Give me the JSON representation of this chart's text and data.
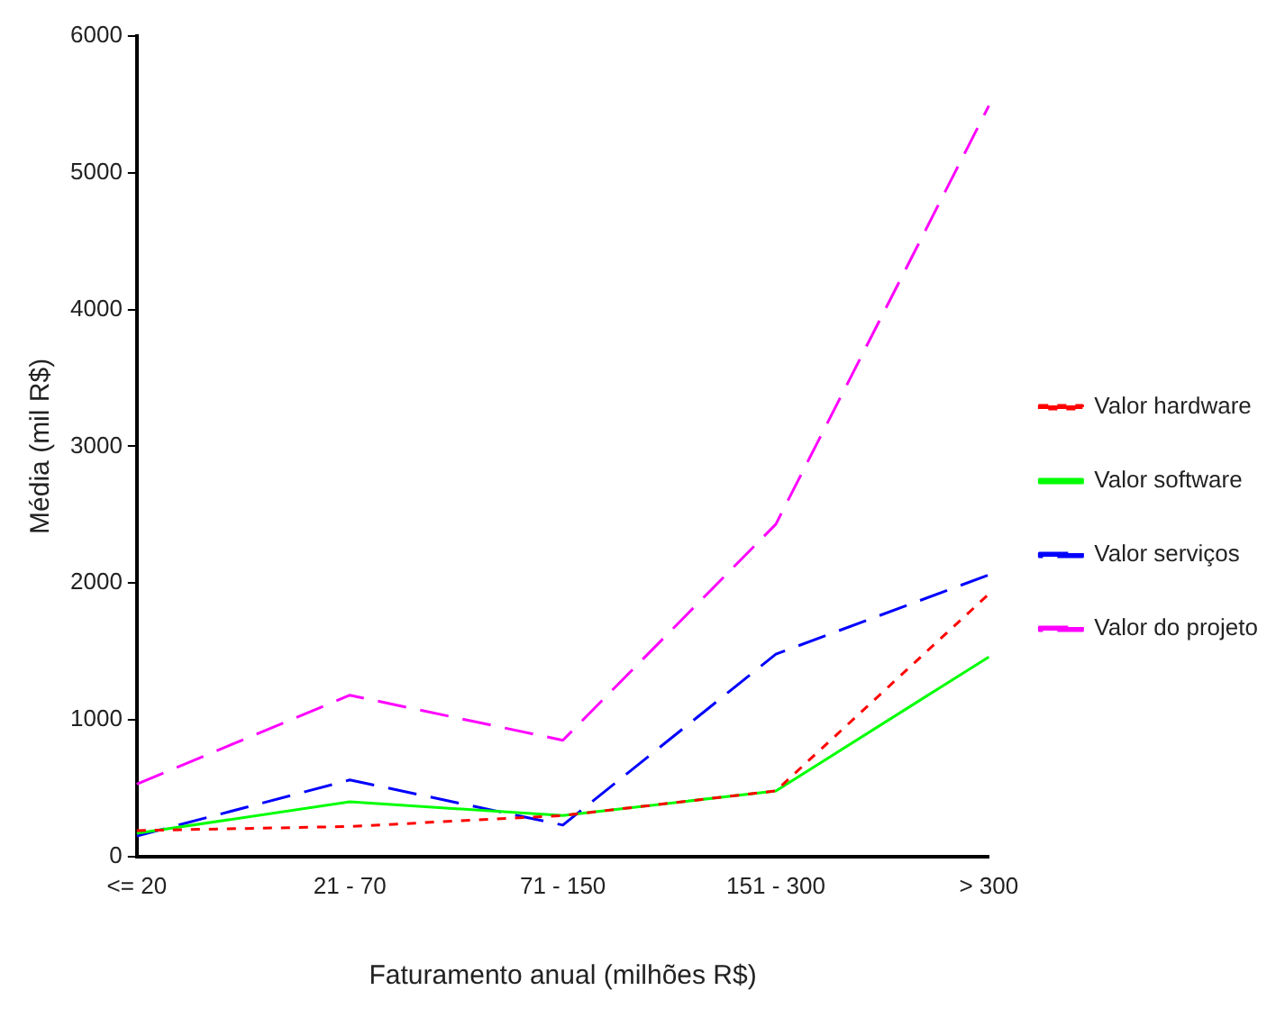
{
  "chart_data": {
    "type": "line",
    "xlabel": "Faturamento anual (milhões R$)",
    "ylabel": "Média (mil R$)",
    "categories": [
      "<= 20",
      "21 - 70",
      "71 - 150",
      "151 - 300",
      "> 300"
    ],
    "series": [
      {
        "name": "Valor hardware",
        "color": "#ff0000",
        "line_style": "dotted",
        "values": [
          190,
          220,
          300,
          480,
          1920
        ]
      },
      {
        "name": "Valor software",
        "color": "#00ff00",
        "line_style": "solid",
        "values": [
          170,
          400,
          300,
          480,
          1460
        ]
      },
      {
        "name": "Valor serviços",
        "color": "#0000ff",
        "line_style": "dashed",
        "values": [
          150,
          560,
          230,
          1480,
          2060
        ]
      },
      {
        "name": "Valor do projeto",
        "color": "#ff00ff",
        "line_style": "dashed",
        "values": [
          530,
          1180,
          850,
          2430,
          5490
        ]
      }
    ],
    "ylim": [
      0,
      6000
    ],
    "yticks": [
      0,
      1000,
      2000,
      3000,
      4000,
      5000,
      6000
    ],
    "grid": false,
    "legend": "right",
    "marker": "none"
  }
}
